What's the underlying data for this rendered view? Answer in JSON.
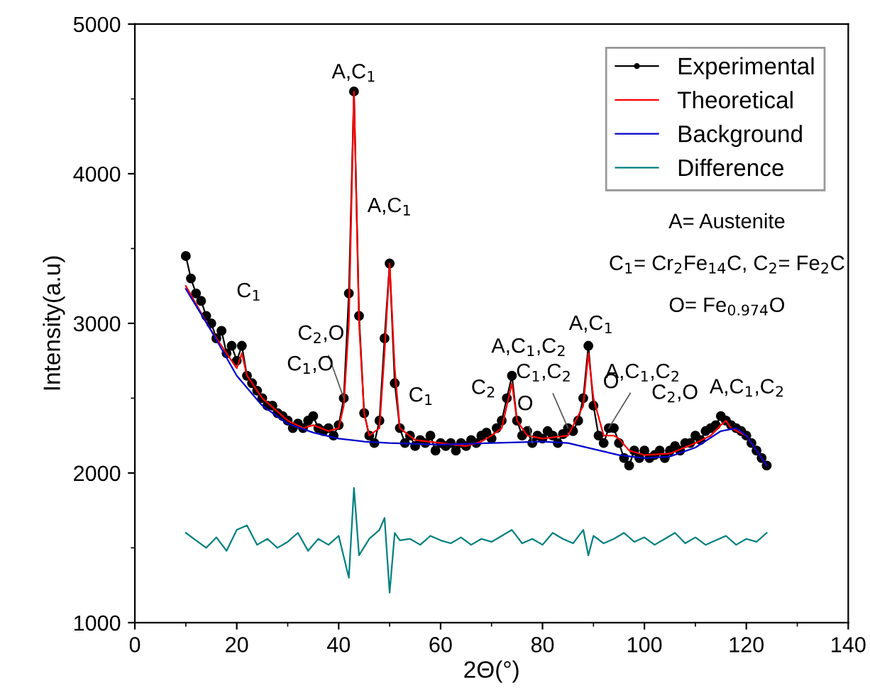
{
  "chart_data": {
    "type": "line",
    "xlabel": "2Θ(°)",
    "ylabel": "Intensity(a.u)",
    "xlim": [
      0,
      140
    ],
    "ylim": [
      1000,
      5000
    ],
    "xticks": [
      0,
      20,
      40,
      60,
      80,
      100,
      120,
      140
    ],
    "yticks": [
      1000,
      2000,
      3000,
      4000,
      5000
    ],
    "grid": false,
    "legend": "top right",
    "series": [
      {
        "name": "Experimental",
        "color": "#000000",
        "marker": "circle",
        "x": [
          10,
          11,
          12,
          13,
          14,
          15,
          16,
          17,
          18,
          19,
          20,
          21,
          22,
          23,
          24,
          25,
          26,
          27,
          28,
          29,
          30,
          31,
          32,
          33,
          34,
          35,
          36,
          37,
          38,
          39,
          40,
          41,
          42,
          43,
          44,
          45,
          46,
          47,
          48,
          49,
          50,
          51,
          52,
          53,
          54,
          55,
          56,
          57,
          58,
          59,
          60,
          61,
          62,
          63,
          64,
          65,
          66,
          67,
          68,
          69,
          70,
          71,
          72,
          73,
          74,
          75,
          76,
          77,
          78,
          79,
          80,
          81,
          82,
          83,
          84,
          85,
          86,
          87,
          88,
          89,
          90,
          91,
          92,
          93,
          94,
          95,
          96,
          97,
          98,
          99,
          100,
          101,
          102,
          103,
          104,
          105,
          106,
          107,
          108,
          109,
          110,
          111,
          112,
          113,
          114,
          115,
          116,
          117,
          118,
          119,
          120,
          121,
          122,
          123,
          124
        ],
        "values": [
          3450,
          3300,
          3200,
          3150,
          3050,
          3000,
          2900,
          2950,
          2800,
          2850,
          2750,
          2850,
          2650,
          2600,
          2550,
          2500,
          2450,
          2450,
          2400,
          2380,
          2350,
          2300,
          2330,
          2300,
          2350,
          2380,
          2300,
          2280,
          2300,
          2250,
          2320,
          2500,
          3200,
          4550,
          3050,
          2400,
          2250,
          2200,
          2350,
          2900,
          3400,
          2600,
          2300,
          2200,
          2250,
          2180,
          2220,
          2200,
          2250,
          2150,
          2200,
          2180,
          2200,
          2150,
          2200,
          2180,
          2220,
          2200,
          2250,
          2270,
          2230,
          2300,
          2350,
          2500,
          2650,
          2350,
          2250,
          2280,
          2200,
          2250,
          2230,
          2280,
          2250,
          2200,
          2260,
          2300,
          2280,
          2350,
          2500,
          2850,
          2450,
          2250,
          2200,
          2300,
          2300,
          2200,
          2100,
          2050,
          2150,
          2100,
          2150,
          2100,
          2120,
          2150,
          2100,
          2150,
          2180,
          2150,
          2200,
          2200,
          2250,
          2220,
          2280,
          2300,
          2320,
          2380,
          2350,
          2320,
          2300,
          2280,
          2250,
          2200,
          2150,
          2100,
          2050
        ]
      },
      {
        "name": "Theoretical",
        "color": "#ff0000",
        "x": [
          10,
          15,
          20,
          21,
          22,
          25,
          30,
          33,
          35,
          38,
          40,
          41,
          42,
          43,
          44,
          45,
          46,
          48,
          49,
          50,
          51,
          52,
          55,
          60,
          65,
          68,
          70,
          72,
          73,
          74,
          75,
          77,
          80,
          85,
          88,
          89,
          90,
          92,
          94,
          95,
          97,
          100,
          105,
          110,
          113,
          115,
          116,
          117,
          120,
          122,
          124
        ],
        "values": [
          3250,
          2950,
          2700,
          2800,
          2650,
          2500,
          2350,
          2300,
          2320,
          2280,
          2300,
          2450,
          3000,
          4550,
          3000,
          2400,
          2250,
          2300,
          2800,
          3400,
          2700,
          2300,
          2220,
          2200,
          2180,
          2210,
          2250,
          2300,
          2450,
          2600,
          2350,
          2250,
          2230,
          2250,
          2450,
          2800,
          2500,
          2250,
          2250,
          2230,
          2150,
          2120,
          2130,
          2200,
          2250,
          2320,
          2350,
          2300,
          2250,
          2150,
          2050
        ]
      },
      {
        "name": "Background",
        "color": "#0000cc",
        "x": [
          10,
          15,
          20,
          25,
          30,
          35,
          40,
          45,
          50,
          60,
          70,
          80,
          85,
          90,
          95,
          100,
          105,
          110,
          115,
          118,
          120,
          122,
          124
        ],
        "values": [
          3230,
          2950,
          2650,
          2450,
          2330,
          2270,
          2230,
          2210,
          2200,
          2190,
          2200,
          2210,
          2200,
          2160,
          2120,
          2100,
          2110,
          2170,
          2280,
          2300,
          2250,
          2150,
          2050
        ]
      },
      {
        "name": "Difference",
        "color": "#008080",
        "x": [
          10,
          12,
          14,
          16,
          18,
          20,
          22,
          24,
          26,
          28,
          30,
          32,
          34,
          36,
          38,
          40,
          42,
          43,
          44,
          46,
          48,
          49,
          50,
          51,
          52,
          54,
          56,
          58,
          60,
          62,
          64,
          66,
          68,
          70,
          72,
          74,
          76,
          78,
          80,
          82,
          84,
          86,
          88,
          89,
          90,
          92,
          94,
          96,
          98,
          100,
          102,
          104,
          106,
          108,
          110,
          112,
          114,
          116,
          118,
          120,
          122,
          124
        ],
        "values": [
          1600,
          1550,
          1500,
          1570,
          1480,
          1620,
          1650,
          1520,
          1560,
          1500,
          1540,
          1600,
          1480,
          1560,
          1520,
          1580,
          1300,
          1900,
          1450,
          1560,
          1620,
          1700,
          1200,
          1600,
          1550,
          1560,
          1520,
          1580,
          1550,
          1530,
          1570,
          1520,
          1560,
          1540,
          1580,
          1620,
          1530,
          1560,
          1520,
          1600,
          1560,
          1530,
          1620,
          1450,
          1580,
          1530,
          1560,
          1600,
          1540,
          1570,
          1520,
          1560,
          1600,
          1530,
          1570,
          1520,
          1550,
          1580,
          1520,
          1560,
          1540,
          1600
        ]
      }
    ],
    "annotations": [
      {
        "text": "A,C$_{1}$",
        "x": 43,
        "y": 4550
      },
      {
        "text": "A,C$_{1}$",
        "x": 50,
        "y": 3400
      },
      {
        "text": "C$_{1}$",
        "x": 21,
        "y": 2850
      },
      {
        "text": "C$_{2}$,O",
        "x": 41,
        "y": 2500
      },
      {
        "text": "C$_{1}$,O",
        "x": 35,
        "y": 2380
      },
      {
        "text": "C$_{1}$",
        "x": 57,
        "y": 2200
      },
      {
        "text": "C$_{2}$",
        "x": 69,
        "y": 2270
      },
      {
        "text": "A,C$_{1}$,C$_{2}$",
        "x": 74,
        "y": 2650
      },
      {
        "text": "O",
        "x": 78,
        "y": 2200
      },
      {
        "text": "C$_{1}$,C$_{2}$",
        "x": 85,
        "y": 2300
      },
      {
        "text": "A,C$_{1}$",
        "x": 89,
        "y": 2850
      },
      {
        "text": "A,C$_{1}$,C$_{2}$",
        "x": 93,
        "y": 2300
      },
      {
        "text": "O",
        "x": 94,
        "y": 2300
      },
      {
        "text": "C$_{2}$,O",
        "x": 106,
        "y": 2180
      },
      {
        "text": "A,C$_{1}$,C$_{2}$",
        "x": 116,
        "y": 2350
      },
      "A= Austenite",
      "C$_{1}$= Cr$_{2}$Fe$_{14}$C, C$_{2}$= Fe$_{2}$C",
      "O= Fe$_{0.974}$O"
    ]
  }
}
